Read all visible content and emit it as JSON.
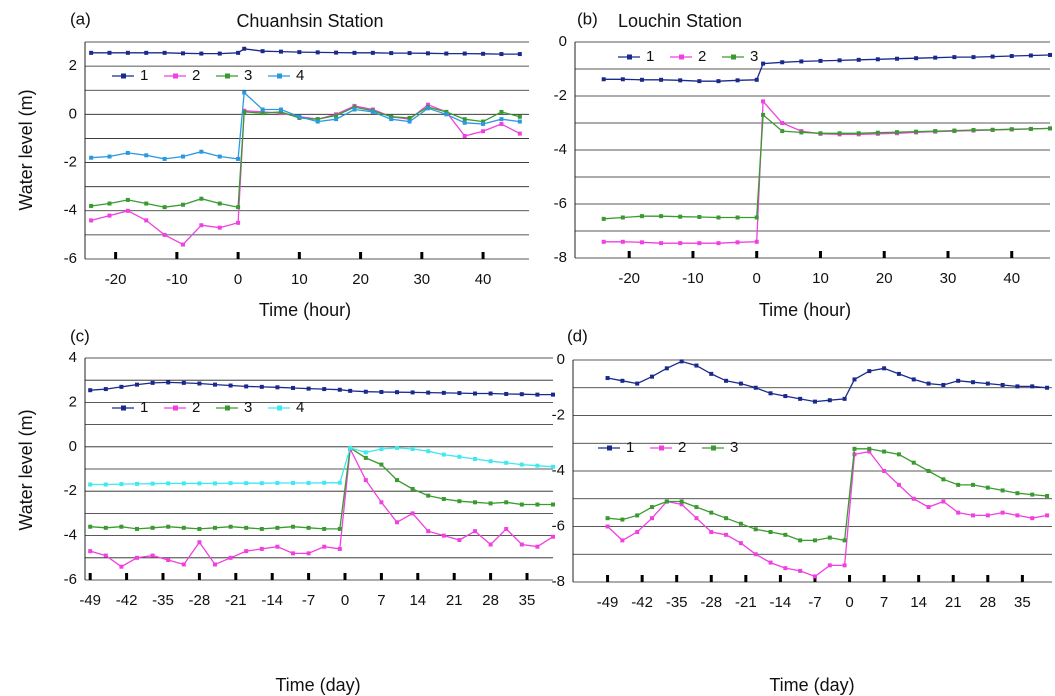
{
  "chart_data": [
    {
      "type": "line",
      "panel": "(a)",
      "title": "Chuanhsin Station",
      "xlabel": "Time (hour)",
      "ylabel": "Water level (m)",
      "xlim": [
        -25,
        47.5
      ],
      "ylim": [
        -6,
        3
      ],
      "xticks": [
        -20,
        -10,
        0,
        10,
        20,
        30,
        40
      ],
      "yticks": [
        -6,
        -4,
        -2,
        0,
        2
      ],
      "ygrid_minor": [
        -5,
        -3,
        -1,
        1,
        3
      ],
      "grid": true,
      "x": [
        -24,
        -21,
        -18,
        -15,
        -12,
        -9,
        -6,
        -3,
        0,
        1,
        4,
        7,
        10,
        13,
        16,
        19,
        22,
        25,
        28,
        31,
        34,
        37,
        40,
        43,
        46
      ],
      "series": [
        {
          "name": "1",
          "color": "#1a2a8c",
          "values": [
            2.55,
            2.55,
            2.55,
            2.55,
            2.55,
            2.53,
            2.52,
            2.52,
            2.55,
            2.72,
            2.62,
            2.6,
            2.58,
            2.57,
            2.56,
            2.55,
            2.55,
            2.54,
            2.54,
            2.53,
            2.52,
            2.52,
            2.51,
            2.5,
            2.5
          ]
        },
        {
          "name": "2",
          "color": "#f040e0",
          "values": [
            -4.4,
            -4.2,
            -4.0,
            -4.4,
            -5.0,
            -5.4,
            -4.6,
            -4.7,
            -4.5,
            0.15,
            0.1,
            0.05,
            -0.1,
            -0.2,
            0.0,
            0.35,
            0.2,
            -0.1,
            -0.2,
            0.4,
            0.1,
            -0.9,
            -0.7,
            -0.4,
            -0.8
          ]
        },
        {
          "name": "3",
          "color": "#3a9a30",
          "values": [
            -3.8,
            -3.7,
            -3.55,
            -3.7,
            -3.85,
            -3.75,
            -3.5,
            -3.7,
            -3.85,
            0.1,
            0.05,
            0.1,
            -0.15,
            -0.2,
            -0.05,
            0.3,
            0.15,
            -0.1,
            -0.15,
            0.3,
            0.1,
            -0.2,
            -0.3,
            0.1,
            -0.1
          ]
        },
        {
          "name": "4",
          "color": "#2a9ae0",
          "values": [
            -1.8,
            -1.75,
            -1.6,
            -1.7,
            -1.85,
            -1.75,
            -1.55,
            -1.75,
            -1.85,
            0.9,
            0.2,
            0.2,
            -0.1,
            -0.3,
            -0.2,
            0.2,
            0.1,
            -0.2,
            -0.3,
            0.25,
            0.0,
            -0.35,
            -0.4,
            -0.2,
            -0.3
          ]
        }
      ]
    },
    {
      "type": "line",
      "panel": "(b)",
      "title": "Louchin Station",
      "xlabel": "Time (hour)",
      "xlim": [
        -28.5,
        46
      ],
      "ylim": [
        -8,
        0
      ],
      "xticks": [
        -20,
        -10,
        0,
        10,
        20,
        30,
        40
      ],
      "yticks": [
        -8,
        -6,
        -4,
        -2,
        0
      ],
      "ygrid_minor": [
        -7,
        -5,
        -3,
        -1
      ],
      "grid": true,
      "x": [
        -24,
        -21,
        -18,
        -15,
        -12,
        -9,
        -6,
        -3,
        0,
        1,
        4,
        7,
        10,
        13,
        16,
        19,
        22,
        25,
        28,
        31,
        34,
        37,
        40,
        43,
        46
      ],
      "series": [
        {
          "name": "1",
          "color": "#1a2a8c",
          "values": [
            -1.38,
            -1.38,
            -1.4,
            -1.4,
            -1.42,
            -1.45,
            -1.45,
            -1.42,
            -1.4,
            -0.8,
            -0.75,
            -0.72,
            -0.7,
            -0.68,
            -0.66,
            -0.64,
            -0.62,
            -0.6,
            -0.58,
            -0.56,
            -0.56,
            -0.54,
            -0.52,
            -0.5,
            -0.48
          ]
        },
        {
          "name": "2",
          "color": "#f040e0",
          "values": [
            -7.4,
            -7.4,
            -7.42,
            -7.45,
            -7.45,
            -7.45,
            -7.45,
            -7.42,
            -7.4,
            -2.2,
            -3.0,
            -3.3,
            -3.4,
            -3.42,
            -3.42,
            -3.4,
            -3.38,
            -3.35,
            -3.32,
            -3.3,
            -3.28,
            -3.26,
            -3.24,
            -3.22,
            -3.2
          ]
        },
        {
          "name": "3",
          "color": "#3a9a30",
          "values": [
            -6.55,
            -6.5,
            -6.45,
            -6.45,
            -6.47,
            -6.48,
            -6.5,
            -6.5,
            -6.5,
            -2.7,
            -3.3,
            -3.35,
            -3.38,
            -3.38,
            -3.38,
            -3.36,
            -3.34,
            -3.32,
            -3.3,
            -3.28,
            -3.26,
            -3.25,
            -3.23,
            -3.22,
            -3.2
          ]
        }
      ]
    },
    {
      "type": "line",
      "panel": "(c)",
      "xlabel": "Time (day)",
      "ylabel": "Water level (m)",
      "xlim": [
        -50,
        40
      ],
      "ylim": [
        -6,
        4
      ],
      "xticks": [
        -49,
        -42,
        -35,
        -28,
        -21,
        -14,
        -7,
        0,
        7,
        14,
        21,
        28,
        35
      ],
      "yticks": [
        -6,
        -4,
        -2,
        0,
        2,
        4
      ],
      "ygrid_minor": [
        -5,
        -3,
        -1,
        1,
        3
      ],
      "grid": true,
      "x": [
        -49,
        -46,
        -43,
        -40,
        -37,
        -34,
        -31,
        -28,
        -25,
        -22,
        -19,
        -16,
        -13,
        -10,
        -7,
        -4,
        -1,
        1,
        4,
        7,
        10,
        13,
        16,
        19,
        22,
        25,
        28,
        31,
        34,
        37,
        40
      ],
      "series": [
        {
          "name": "1",
          "color": "#1a2a8c",
          "values": [
            2.55,
            2.6,
            2.7,
            2.8,
            2.88,
            2.9,
            2.88,
            2.85,
            2.8,
            2.76,
            2.72,
            2.7,
            2.68,
            2.65,
            2.62,
            2.6,
            2.57,
            2.52,
            2.48,
            2.47,
            2.46,
            2.45,
            2.44,
            2.43,
            2.42,
            2.4,
            2.4,
            2.38,
            2.37,
            2.35,
            2.35
          ]
        },
        {
          "name": "2",
          "color": "#f040e0",
          "values": [
            -4.7,
            -4.9,
            -5.4,
            -5.0,
            -4.9,
            -5.1,
            -5.3,
            -4.3,
            -5.3,
            -5.0,
            -4.7,
            -4.6,
            -4.5,
            -4.8,
            -4.8,
            -4.5,
            -4.6,
            -0.1,
            -1.5,
            -2.5,
            -3.4,
            -3.0,
            -3.8,
            -4.0,
            -4.2,
            -3.8,
            -4.4,
            -3.7,
            -4.4,
            -4.5,
            -4.05
          ]
        },
        {
          "name": "3",
          "color": "#3a9a30",
          "values": [
            -3.6,
            -3.65,
            -3.6,
            -3.7,
            -3.65,
            -3.6,
            -3.65,
            -3.7,
            -3.65,
            -3.6,
            -3.65,
            -3.7,
            -3.65,
            -3.6,
            -3.65,
            -3.7,
            -3.7,
            -0.05,
            -0.5,
            -0.8,
            -1.5,
            -1.9,
            -2.2,
            -2.35,
            -2.45,
            -2.5,
            -2.55,
            -2.5,
            -2.6,
            -2.6,
            -2.6
          ]
        },
        {
          "name": "4",
          "color": "#40e8f0",
          "values": [
            -1.7,
            -1.7,
            -1.68,
            -1.67,
            -1.66,
            -1.65,
            -1.65,
            -1.65,
            -1.65,
            -1.64,
            -1.64,
            -1.64,
            -1.63,
            -1.63,
            -1.63,
            -1.62,
            -1.62,
            -0.05,
            -0.25,
            -0.1,
            -0.05,
            -0.1,
            -0.2,
            -0.35,
            -0.45,
            -0.55,
            -0.65,
            -0.72,
            -0.8,
            -0.85,
            -0.9
          ]
        }
      ]
    },
    {
      "type": "line",
      "panel": "(d)",
      "xlabel": "Time (day)",
      "xlim": [
        -56,
        41
      ],
      "ylim": [
        -8,
        0
      ],
      "xticks": [
        -49,
        -42,
        -35,
        -28,
        -21,
        -14,
        -7,
        0,
        7,
        14,
        21,
        28,
        35
      ],
      "yticks": [
        -8,
        -6,
        -4,
        -2,
        0
      ],
      "ygrid_minor": [
        -7,
        -5,
        -3,
        -1
      ],
      "grid": true,
      "x": [
        -49,
        -46,
        -43,
        -40,
        -37,
        -34,
        -31,
        -28,
        -25,
        -22,
        -19,
        -16,
        -13,
        -10,
        -7,
        -4,
        -1,
        1,
        4,
        7,
        10,
        13,
        16,
        19,
        22,
        25,
        28,
        31,
        34,
        37,
        40
      ],
      "series": [
        {
          "name": "1",
          "color": "#1a2a8c",
          "values": [
            -0.65,
            -0.75,
            -0.85,
            -0.6,
            -0.3,
            -0.05,
            -0.2,
            -0.5,
            -0.75,
            -0.85,
            -1.0,
            -1.2,
            -1.3,
            -1.4,
            -1.5,
            -1.45,
            -1.4,
            -0.7,
            -0.4,
            -0.3,
            -0.5,
            -0.7,
            -0.85,
            -0.9,
            -0.75,
            -0.8,
            -0.85,
            -0.9,
            -0.95,
            -0.95,
            -1.0
          ]
        },
        {
          "name": "2",
          "color": "#f040e0",
          "values": [
            -6.0,
            -6.5,
            -6.2,
            -5.7,
            -5.1,
            -5.2,
            -5.7,
            -6.2,
            -6.3,
            -6.6,
            -7.0,
            -7.3,
            -7.5,
            -7.6,
            -7.8,
            -7.4,
            -7.4,
            -3.4,
            -3.3,
            -4.0,
            -4.5,
            -5.0,
            -5.3,
            -5.1,
            -5.5,
            -5.6,
            -5.6,
            -5.5,
            -5.6,
            -5.7,
            -5.6
          ]
        },
        {
          "name": "3",
          "color": "#3a9a30",
          "values": [
            -5.7,
            -5.75,
            -5.6,
            -5.3,
            -5.1,
            -5.1,
            -5.3,
            -5.5,
            -5.7,
            -5.9,
            -6.1,
            -6.2,
            -6.3,
            -6.5,
            -6.5,
            -6.4,
            -6.5,
            -3.2,
            -3.2,
            -3.3,
            -3.4,
            -3.7,
            -4.0,
            -4.3,
            -4.5,
            -4.5,
            -4.6,
            -4.7,
            -4.8,
            -4.85,
            -4.9
          ]
        }
      ]
    }
  ]
}
